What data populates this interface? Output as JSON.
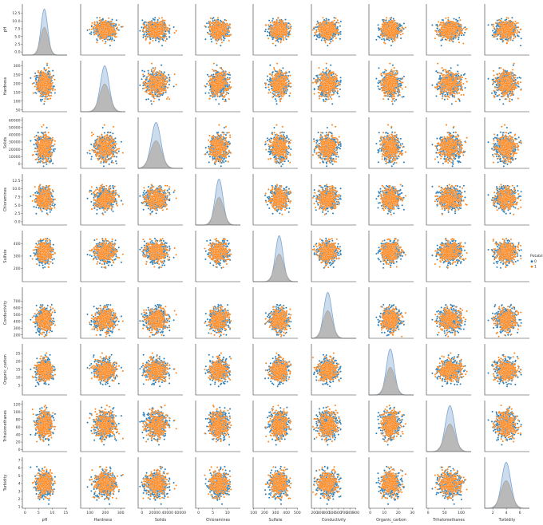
{
  "chart_data": {
    "type": "scatter",
    "variables": [
      "ph",
      "Hardness",
      "Solids",
      "Chloramines",
      "Sulfate",
      "Conductivity",
      "Organic_carbon",
      "Trihalomethanes",
      "Turbidity"
    ],
    "xlabels": [
      "pH",
      "Hardness",
      "Solids",
      "Chloramines",
      "Sulfate",
      "Conductivity",
      "Organic_carbon",
      "Trihalomethanes",
      "Turbidity"
    ],
    "ylabels": [
      "pH",
      "Hardness",
      "Solids",
      "Chloramines",
      "Sulfate",
      "Conductivity",
      "Organic_carbon",
      "Trihalomethanes",
      "Turbidity"
    ],
    "diag_type": "kde",
    "ranges": [
      [
        -1.0,
        15.5
      ],
      [
        40,
        330
      ],
      [
        -6000,
        64000
      ],
      [
        -1.0,
        14.5
      ],
      [
        95,
        505
      ],
      [
        150,
        905
      ],
      [
        -1,
        31
      ],
      [
        -5,
        130
      ],
      [
        0.8,
        7.4
      ]
    ],
    "x_ticks": [
      [
        0,
        5,
        10,
        15
      ],
      [
        100,
        200,
        300
      ],
      [
        0,
        20000,
        40000,
        60000
      ],
      [
        0,
        5,
        10,
        15
      ],
      [
        100,
        200,
        300,
        400,
        500
      ],
      [
        200,
        300,
        400,
        500,
        600,
        700,
        800,
        900
      ],
      [
        0,
        10,
        20,
        30
      ],
      [
        0,
        50,
        100
      ],
      [
        2,
        4,
        6
      ]
    ],
    "x_tick_labels": [
      [
        "0",
        "5",
        "10",
        "15"
      ],
      [
        "100",
        "200",
        "300"
      ],
      [
        "0",
        "20000",
        "40000",
        "60000"
      ],
      [
        "0",
        "5",
        "10",
        "15"
      ],
      [
        "100",
        "200",
        "300",
        "400",
        "500"
      ],
      [
        "200",
        "300",
        "400",
        "500",
        "600",
        "700",
        "800",
        "900"
      ],
      [
        "0",
        "10",
        "20",
        "30"
      ],
      [
        "0",
        "50",
        "100"
      ],
      [
        "2",
        "4",
        "6"
      ]
    ],
    "y_ticks": [
      [
        0.0,
        2.5,
        5.0,
        7.5,
        10.0,
        12.5
      ],
      [
        50,
        100,
        150,
        200,
        250,
        300
      ],
      [
        0,
        10000,
        20000,
        30000,
        40000,
        50000,
        60000
      ],
      [
        0.0,
        2.5,
        5.0,
        7.5,
        10.0,
        12.5
      ],
      [
        200,
        300,
        400
      ],
      [
        200,
        300,
        400,
        500,
        600,
        700
      ],
      [
        5,
        10,
        15,
        20,
        25
      ],
      [
        0,
        20,
        40,
        60,
        80,
        100,
        120
      ],
      [
        1,
        2,
        3,
        4,
        5,
        6,
        7
      ]
    ],
    "y_tick_labels": [
      [
        "0.0",
        "2.5",
        "5.0",
        "7.5",
        "10.0",
        "12.5"
      ],
      [
        "50",
        "100",
        "150",
        "200",
        "250",
        "300"
      ],
      [
        "0",
        "10000",
        "20000",
        "30000",
        "40000",
        "50000",
        "60000"
      ],
      [
        "0.0",
        "2.5",
        "5.0",
        "7.5",
        "10.0",
        "12.5"
      ],
      [
        "200",
        "300",
        "400"
      ],
      [
        "200",
        "300",
        "400",
        "500",
        "600",
        "700"
      ],
      [
        "5",
        "10",
        "15",
        "20",
        "25"
      ],
      [
        "0",
        "20",
        "40",
        "60",
        "80",
        "100",
        "120"
      ],
      [
        "1",
        "2",
        "3",
        "4",
        "5",
        "6",
        "7"
      ]
    ],
    "distribution_params": [
      {
        "mean": 7.1,
        "sd": 1.45
      },
      {
        "mean": 196,
        "sd": 33
      },
      {
        "mean": 22000,
        "sd": 8800
      },
      {
        "mean": 7.1,
        "sd": 1.6
      },
      {
        "mean": 334,
        "sd": 41
      },
      {
        "mean": 426,
        "sd": 80
      },
      {
        "mean": 14.3,
        "sd": 3.3
      },
      {
        "mean": 66,
        "sd": 16
      },
      {
        "mean": 3.97,
        "sd": 0.78
      }
    ],
    "series": [
      {
        "name": "0",
        "color": "#1f77b4",
        "points_per_panel": 420,
        "kde_scale": 1.0,
        "kde_fill_opacity": 0.25
      },
      {
        "name": "1",
        "color": "#ff7f0e",
        "points_per_panel": 300,
        "kde_scale": 0.6,
        "kde_fill_opacity": 0.25
      }
    ],
    "legend": {
      "title": "Potability",
      "entries": [
        "0",
        "1"
      ],
      "placement": "right"
    },
    "grid": false
  }
}
